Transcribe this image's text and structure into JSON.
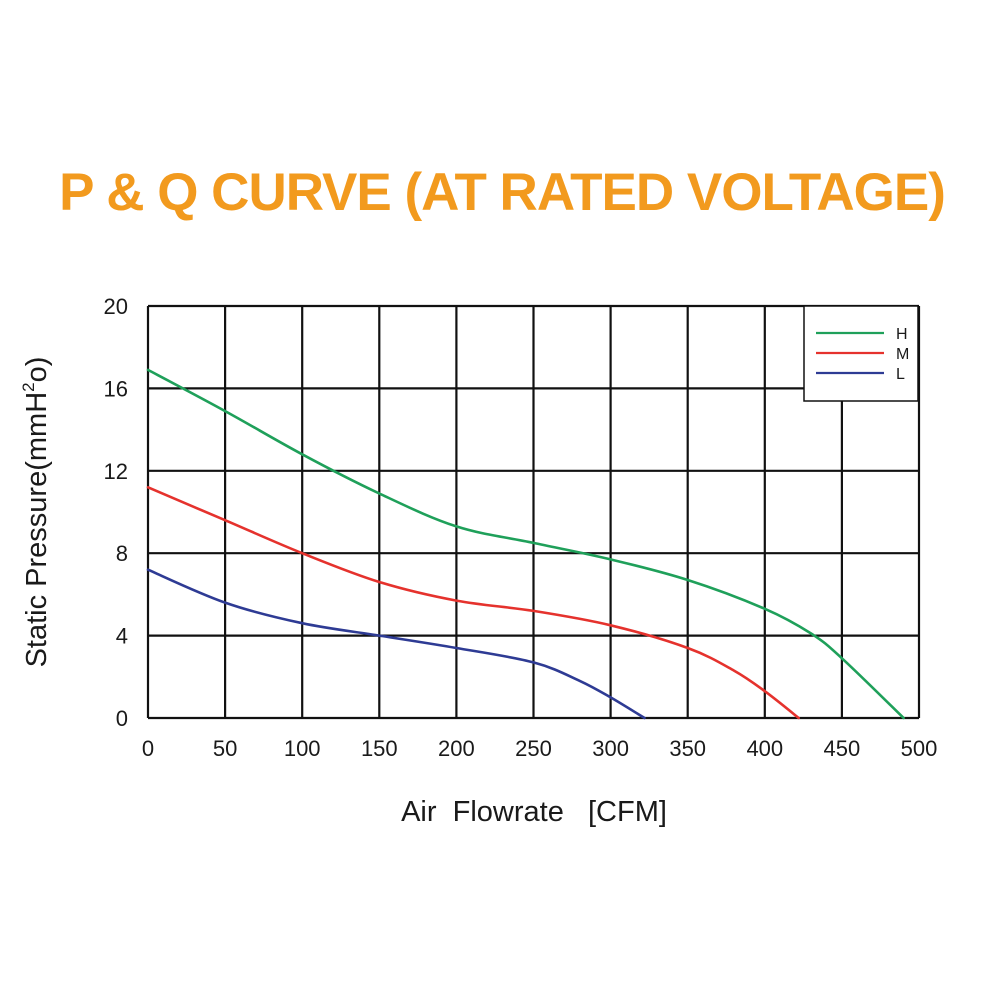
{
  "title": "P & Q CURVE (AT RATED VOLTAGE)",
  "colors": {
    "title": "#f29a1e",
    "grid": "#111111"
  },
  "chart_data": {
    "type": "line",
    "xlabel": "Air  Flowrate   [CFM]",
    "ylabel": "Static Pressure(mmH",
    "ylabel_sup": "2",
    "ylabel_end": "o)",
    "xlim": [
      0,
      500
    ],
    "ylim": [
      0,
      20
    ],
    "xticks": [
      0,
      50,
      100,
      150,
      200,
      250,
      300,
      350,
      400,
      450,
      500
    ],
    "yticks": [
      0,
      4,
      8,
      12,
      16,
      20
    ],
    "grid": true,
    "legend_position": "top-right",
    "series": [
      {
        "name": "H",
        "color": "#1fa05a",
        "x": [
          0,
          50,
          100,
          150,
          200,
          250,
          300,
          350,
          400,
          430,
          450,
          490
        ],
        "y": [
          16.9,
          14.9,
          12.8,
          10.9,
          9.3,
          8.5,
          7.7,
          6.7,
          5.3,
          4.1,
          2.9,
          0
        ]
      },
      {
        "name": "M",
        "color": "#e5322d",
        "x": [
          0,
          50,
          100,
          150,
          200,
          250,
          300,
          350,
          380,
          400,
          422
        ],
        "y": [
          11.2,
          9.6,
          8.0,
          6.6,
          5.7,
          5.2,
          4.5,
          3.4,
          2.3,
          1.3,
          0
        ]
      },
      {
        "name": "L",
        "color": "#2e3b94",
        "x": [
          0,
          50,
          100,
          150,
          200,
          250,
          280,
          300,
          322
        ],
        "y": [
          7.2,
          5.6,
          4.6,
          4.0,
          3.4,
          2.7,
          1.8,
          1.0,
          0
        ]
      }
    ]
  }
}
